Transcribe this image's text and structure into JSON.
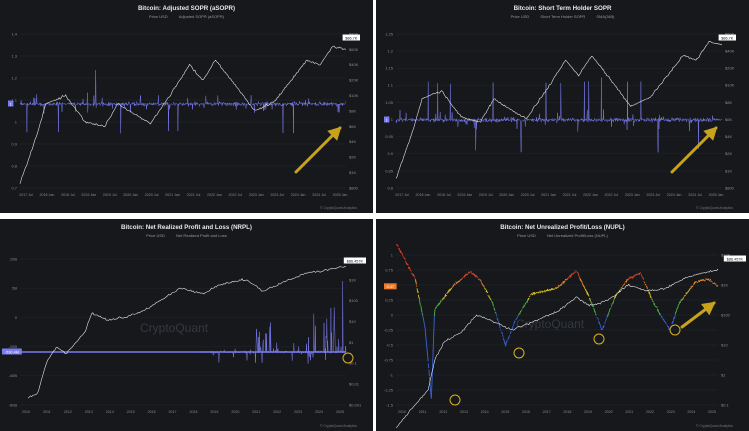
{
  "panels": [
    {
      "id": "p1",
      "title": "Bitcoin: Adjusted SOPR (aSOPR)",
      "legend": [
        "Price USD",
        "Adjusted SOPR (aSOPR)"
      ],
      "credit": "© CryptoQuant Analytics",
      "watermark": "",
      "chart_data": {
        "type": "line",
        "series": [
          {
            "name": "Price USD"
          },
          {
            "name": "Adjusted SOPR (aSOPR)"
          }
        ],
        "x_ticks": [
          "2017 Jul",
          "2018 Jan",
          "2018 Jul",
          "2019 Jan",
          "2019 Jul",
          "2020 Jan",
          "2020 Jul",
          "2021 Jan",
          "2021 Jul",
          "2022 Jan",
          "2022 Jul",
          "2023 Jan",
          "2023 Jul",
          "2024 Jan",
          "2024 Jul",
          "2025 Jan"
        ],
        "y_left_ticks": [
          "1.4",
          "1.3",
          "1.2",
          "1.1",
          "1",
          "0.9",
          "0.8",
          "0.7"
        ],
        "y_right_ticks": [
          "$80K",
          "$60K",
          "$40K",
          "$20K",
          "$10K",
          "$8K",
          "$6K",
          "$4K",
          "$2K",
          "$1K",
          "$800"
        ],
        "current_left": "1",
        "current_right": "$86.7K",
        "arrow": "up-right"
      }
    },
    {
      "id": "p2",
      "title": "Bitcoin: Short Term Holder SOPR",
      "legend": [
        "Price USD",
        "Short Term Holder SOPR",
        "SMA(365)"
      ],
      "credit": "© CryptoQuant Analytics",
      "watermark": "",
      "chart_data": {
        "type": "line",
        "series": [
          {
            "name": "Price USD"
          },
          {
            "name": "Short Term Holder SOPR"
          },
          {
            "name": "SMA(365)"
          }
        ],
        "x_ticks": [
          "2017 Jul",
          "2018 Jan",
          "2018 Jul",
          "2019 Jan",
          "2019 Jul",
          "2020 Jan",
          "2020 Jul",
          "2021 Jan",
          "2021 Jul",
          "2022 Jan",
          "2022 Jul",
          "2023 Jan",
          "2023 Jul",
          "2024 Jan",
          "2024 Jul",
          "2025 Jan"
        ],
        "y_left_ticks": [
          "1.25",
          "1.2",
          "1.15",
          "1.1",
          "1.05",
          "1",
          "0.95",
          "0.9",
          "0.85",
          "0.8"
        ],
        "y_right_ticks": [
          "$60K",
          "$40K",
          "$20K",
          "$10K",
          "$8K",
          "$6K",
          "$4K",
          "$2K",
          "$1K",
          "$800"
        ],
        "current_left": "1",
        "current_right": "$86.7K",
        "arrow": "up-right"
      }
    },
    {
      "id": "p3",
      "title": "Bitcoin: Net Realized Profit and Loss (NRPL)",
      "legend": [
        "Price USD",
        "Net Realized Profit and Loss"
      ],
      "credit": "© CryptoQuant Analytics",
      "watermark": "CryptoQuant",
      "chart_data": {
        "type": "line",
        "series": [
          {
            "name": "Price USD"
          },
          {
            "name": "Net Realized Profit and Loss"
          }
        ],
        "x_ticks": [
          "2010",
          "2011",
          "2012",
          "2013",
          "2014",
          "2015",
          "2016",
          "2017",
          "2018",
          "2019",
          "2020",
          "2021",
          "2022",
          "2023",
          "2024",
          "2025"
        ],
        "y_left_ticks": [
          "10B",
          "5B",
          "0",
          "-20B",
          "-40B",
          "-60B"
        ],
        "y_right_ticks": [
          "$10K",
          "$1K",
          "$100",
          "$10",
          "$1",
          "$0.1",
          "$0.01",
          "$0.001"
        ],
        "current_left": "-530.4M",
        "current_right": "$86.457K",
        "highlight": "circle at latest value"
      }
    },
    {
      "id": "p4",
      "title": "Bitcoin: Net Unrealized Profit/Loss (NUPL)",
      "legend": [
        "Price USD",
        "Net Unrealized Profit/Loss (NUPL)"
      ],
      "credit": "© CryptoQuant Analytics",
      "watermark": "CryptoQuant",
      "chart_data": {
        "type": "line",
        "series": [
          {
            "name": "Price USD"
          },
          {
            "name": "Net Unrealized Profit/Loss (NUPL)"
          }
        ],
        "x_ticks": [
          "2010",
          "2011",
          "2012",
          "2013",
          "2014",
          "2015",
          "2016",
          "2017",
          "2018",
          "2019",
          "2020",
          "2021",
          "2022",
          "2023",
          "2024",
          "2025"
        ],
        "y_left_ticks": [
          "1",
          "0.75",
          "0.5",
          "0.25",
          "0",
          "-0.25",
          "-0.5",
          "-0.75",
          "-1",
          "-1.25",
          "-1.5"
        ],
        "y_right_ticks": [
          "$10K",
          "$1K",
          "$100",
          "$10",
          "$1",
          "$0.1"
        ],
        "current_left": "0.47",
        "current_right": "$86.457K",
        "highlights": [
          "2011 low",
          "2015 low",
          "2019 low",
          "2022 low"
        ],
        "arrow": "up-right"
      }
    }
  ]
}
